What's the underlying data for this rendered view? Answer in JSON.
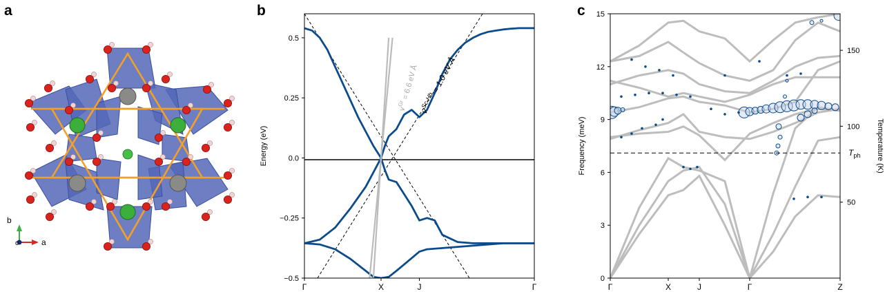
{
  "panels": {
    "a": "a",
    "b": "b",
    "c": "c"
  },
  "structure": {
    "axis_a": "a",
    "axis_b": "b",
    "axis_c": "c"
  },
  "chart_data": [
    {
      "type": "line",
      "panel": "b",
      "ylabel": "Energy (eV)",
      "xlabel": "",
      "ylim": [
        -0.5,
        0.6
      ],
      "x_ticks": [
        "Γ",
        "X",
        "J",
        "Γ"
      ],
      "y_ticks": [
        -0.5,
        -0.25,
        0.0,
        0.25,
        0.5
      ],
      "y_tick_labels": [
        "−0.5",
        "−0.25",
        "0.0",
        "0.25",
        "0.5"
      ],
      "annotations": {
        "graphene": "v",
        "graphene_sup": "Gr",
        "graphene_rest": " = 6.6 eV Å",
        "schb": "v",
        "schb_sup": "Sc-Hb",
        "schb_rest": " = 1.0 eV Å"
      },
      "series": [
        {
          "color": "#0b4a8b",
          "x": [
            0,
            0.1,
            0.2,
            0.3,
            0.4,
            0.5,
            0.6,
            0.7,
            0.8,
            0.9,
            1.0,
            1.05,
            1.1,
            1.2,
            1.3,
            1.4,
            1.5,
            1.6,
            1.7,
            1.8,
            1.9,
            2.0,
            2.1,
            2.2,
            2.3,
            2.4,
            2.5,
            2.6,
            2.7,
            2.8,
            2.9,
            3.0
          ],
          "y": [
            0.54,
            0.53,
            0.5,
            0.45,
            0.38,
            0.31,
            0.24,
            0.17,
            0.11,
            0.05,
            0.0,
            0.05,
            0.09,
            0.12,
            0.18,
            0.2,
            0.17,
            0.2,
            0.27,
            0.35,
            0.41,
            0.45,
            0.48,
            0.5,
            0.515,
            0.525,
            0.53,
            0.535,
            0.538,
            0.54,
            0.54,
            0.54
          ]
        },
        {
          "color": "#0b4a8b",
          "x": [
            0,
            0.2,
            0.4,
            0.6,
            0.8,
            0.95,
            1.0,
            1.05,
            1.1,
            1.2,
            1.4,
            1.5,
            1.6,
            1.7,
            1.8,
            2.0,
            2.2,
            2.4,
            2.6,
            2.8,
            3.0
          ],
          "y": [
            -0.355,
            -0.34,
            -0.29,
            -0.21,
            -0.12,
            -0.03,
            0.0,
            -0.05,
            -0.09,
            -0.1,
            -0.2,
            -0.26,
            -0.25,
            -0.26,
            -0.32,
            -0.35,
            -0.355,
            -0.355,
            -0.355,
            -0.355,
            -0.355
          ]
        },
        {
          "color": "#0b4a8b",
          "x": [
            0,
            0.2,
            0.4,
            0.6,
            0.8,
            0.9,
            1.0,
            1.1,
            1.2,
            1.35,
            1.5,
            1.6,
            1.8,
            2.0,
            2.2,
            2.4,
            2.6,
            2.8,
            3.0
          ],
          "y": [
            -0.355,
            -0.36,
            -0.38,
            -0.42,
            -0.47,
            -0.495,
            -0.5,
            -0.495,
            -0.47,
            -0.43,
            -0.39,
            -0.38,
            -0.375,
            -0.37,
            -0.365,
            -0.36,
            -0.355,
            -0.355,
            -0.355
          ]
        },
        {
          "color": "#bbbbbb",
          "x": [
            0.85,
            1.0,
            1.15
          ],
          "y": [
            -0.5,
            0.0,
            0.5
          ]
        },
        {
          "color": "#bbbbbb",
          "x": [
            0.9,
            1.0,
            1.1
          ],
          "y": [
            -0.5,
            0.0,
            0.5
          ]
        }
      ]
    },
    {
      "type": "scatter",
      "panel": "c",
      "ylabel": "Frequency (meV)",
      "y2label": "Temperature (K)",
      "ylim": [
        0,
        15
      ],
      "x_ticks": [
        "Γ",
        "X",
        "J",
        "Γ",
        "Z"
      ],
      "y_ticks": [
        0,
        3,
        6,
        9,
        12,
        15
      ],
      "y2_ticks": [
        50,
        100,
        150
      ],
      "tph_label": "T",
      "tph_sub": "ph",
      "tph_value": 7.1
    }
  ]
}
